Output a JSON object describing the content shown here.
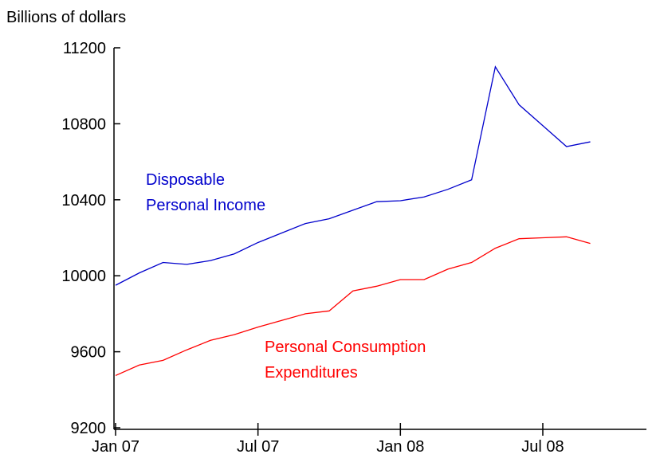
{
  "chart_data": {
    "type": "line",
    "axis_label": "Billions of dollars",
    "x": [
      0,
      1,
      2,
      3,
      4,
      5,
      6,
      7,
      8,
      9,
      10,
      11,
      12,
      13,
      14,
      15,
      16,
      17,
      18,
      19,
      20
    ],
    "xlim": [
      0,
      22.4
    ],
    "xticks": [
      {
        "value": 0,
        "label": "Jan 07"
      },
      {
        "value": 6,
        "label": "Jul 07"
      },
      {
        "value": 12,
        "label": "Jan 08"
      },
      {
        "value": 18,
        "label": "Jul 08"
      }
    ],
    "ylim": [
      9200,
      11200
    ],
    "yticks": [
      9200,
      9600,
      10000,
      10400,
      10800,
      11200
    ],
    "series": [
      {
        "color": "#0000cc",
        "values": [
          9950,
          10015,
          10070,
          10060,
          10080,
          10115,
          10175,
          10225,
          10275,
          10300,
          10345,
          10390,
          10395,
          10415,
          10455,
          10505,
          11100,
          10900,
          10790,
          10680,
          10705
        ]
      },
      {
        "color": "#ff0000",
        "values": [
          9475,
          9530,
          9555,
          9610,
          9660,
          9690,
          9730,
          9765,
          9800,
          9815,
          9920,
          9945,
          9980,
          9980,
          10035,
          10070,
          10145,
          10195,
          10200,
          10205,
          10170
        ]
      }
    ],
    "annotations": [
      {
        "lines": [
          "Disposable",
          "Personal Income"
        ],
        "color": "#0000cc"
      },
      {
        "lines": [
          "Personal Consumption",
          "Expenditures"
        ],
        "color": "#ff0000"
      }
    ]
  }
}
